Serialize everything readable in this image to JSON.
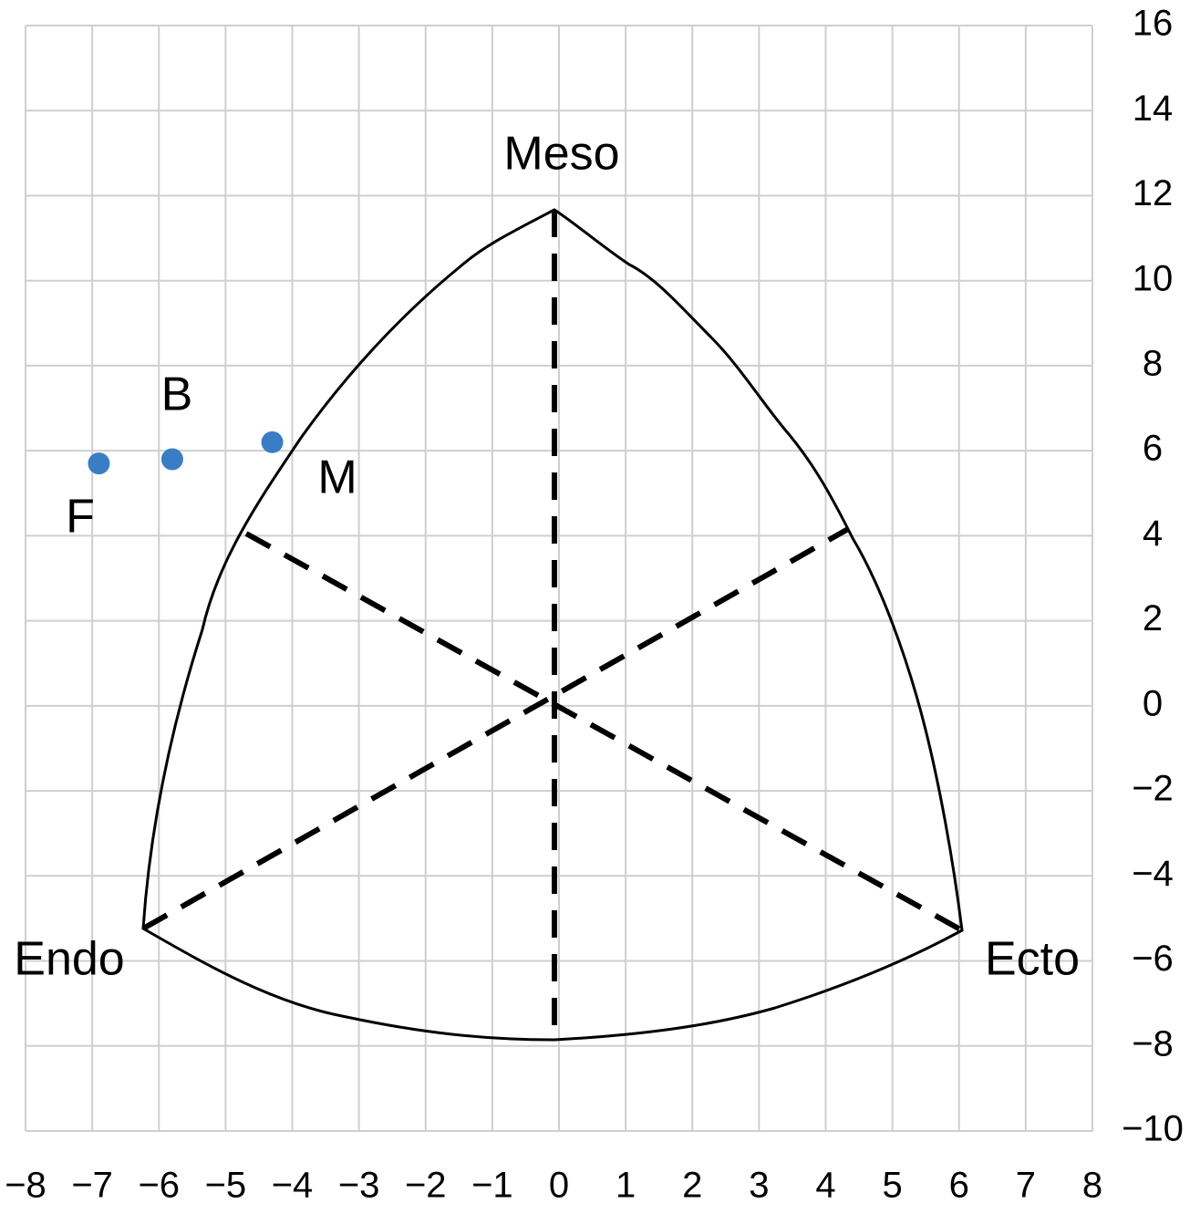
{
  "chart_data": {
    "type": "scatter",
    "x": [
      -6.9,
      -5.8,
      -4.3
    ],
    "y": [
      5.7,
      5.8,
      6.2
    ],
    "labels": [
      "F",
      "B",
      "M"
    ],
    "color": "#3b7dc4",
    "annotations": [
      "Meso",
      "Endo",
      "Ecto"
    ],
    "xlim": [
      -8,
      8
    ],
    "ylim": [
      -10,
      16
    ],
    "xticks": [
      {
        "value": -8,
        "label": "−8"
      },
      {
        "value": -7,
        "label": "−7"
      },
      {
        "value": -6,
        "label": "−6"
      },
      {
        "value": -5,
        "label": "−5"
      },
      {
        "value": -4,
        "label": "−4"
      },
      {
        "value": -3,
        "label": "−3"
      },
      {
        "value": -2,
        "label": "−2"
      },
      {
        "value": -1,
        "label": "−1"
      },
      0,
      1,
      2,
      3,
      4,
      5,
      6,
      7,
      8
    ],
    "yticks": [
      16,
      14,
      12,
      10,
      8,
      6,
      4,
      2,
      0,
      {
        "value": -2,
        "label": "−2"
      },
      {
        "value": -4,
        "label": "−4"
      },
      {
        "value": -6,
        "label": "−6"
      },
      {
        "value": -8,
        "label": "−8"
      },
      {
        "value": -10,
        "label": "−10"
      }
    ],
    "grid": true
  }
}
